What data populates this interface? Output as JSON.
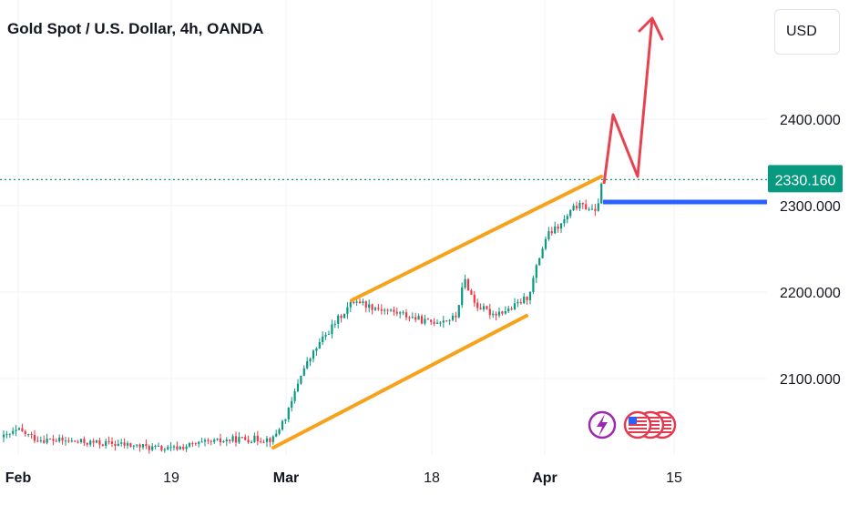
{
  "header": {
    "title": "Gold Spot / U.S. Dollar, 4h, OANDA",
    "currency_label": "USD"
  },
  "chart_data": {
    "type": "candlestick",
    "symbol": "Gold Spot / U.S. Dollar",
    "interval": "4h",
    "source": "OANDA",
    "y_tick_labels": [
      "2400.000",
      "2300.000",
      "2200.000",
      "2100.000"
    ],
    "y_ticks": [
      2400,
      2300,
      2200,
      2100
    ],
    "x_tick_labels": [
      "Feb",
      "19",
      "Mar",
      "18",
      "Apr",
      "15"
    ],
    "last_price": 2330.16,
    "last_price_label": "2330.160",
    "support_level": 2300,
    "colors": {
      "up": "#089981",
      "down": "#f23645",
      "channel": "#f7a21b",
      "projection": "#e8414f",
      "support": "#2962ff",
      "price_line": "#089981",
      "grid": "#f0f3fa",
      "axis_text": "#131722"
    },
    "event_icons": [
      "lightning-icon",
      "us-flag-icon",
      "us-flag-icon",
      "us-flag-icon"
    ]
  }
}
